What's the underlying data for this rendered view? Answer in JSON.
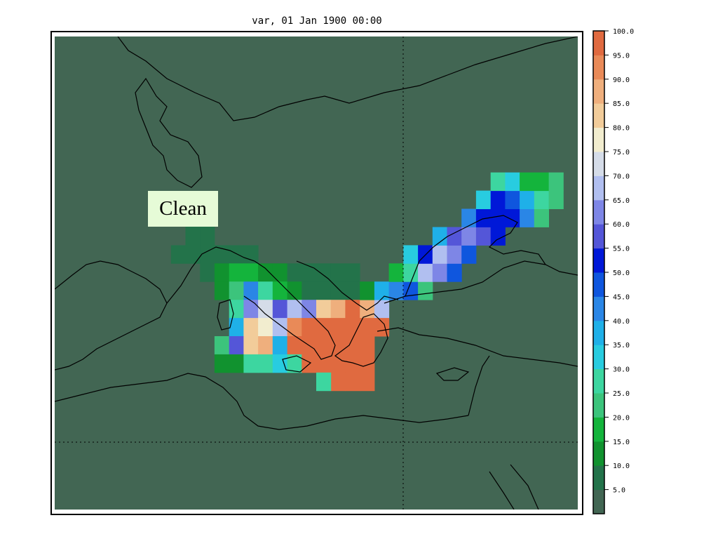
{
  "title": "var, 01 Jan 1900 00:00",
  "annotation": "Clean",
  "colors": {
    "background": "#426653",
    "coast": "#000000",
    "label_box": "#e6fbd7"
  },
  "colorbar": {
    "colors": [
      "#426653",
      "#23734a",
      "#11922f",
      "#14b43c",
      "#3cc47c",
      "#3dd6a0",
      "#28cce0",
      "#1fb0e8",
      "#2a86e6",
      "#0f56de",
      "#0018d8",
      "#5456d8",
      "#7e86e6",
      "#b1bff0",
      "#d5dce8",
      "#f2edcf",
      "#f2cc9a",
      "#efaf7d",
      "#e98a58",
      "#e06a40"
    ],
    "ticks": [
      "5.0",
      "10.0",
      "15.0",
      "20.0",
      "25.0",
      "30.0",
      "35.0",
      "40.0",
      "45.0",
      "50.0",
      "55.0",
      "60.0",
      "65.0",
      "70.0",
      "75.0",
      "80.0",
      "85.0",
      "90.0",
      "95.0",
      "100.0"
    ]
  },
  "grid": {
    "lon": 20,
    "lat": 40,
    "cells": [
      [
        9,
        6,
        1
      ],
      [
        10,
        6,
        1
      ],
      [
        9,
        7,
        1
      ],
      [
        10,
        7,
        1
      ],
      [
        8,
        8,
        1
      ],
      [
        9,
        8,
        1
      ],
      [
        10,
        8,
        1
      ],
      [
        11,
        8,
        1
      ],
      [
        12,
        8,
        1
      ],
      [
        13,
        8,
        1
      ],
      [
        10,
        9,
        1
      ],
      [
        11,
        9,
        2
      ],
      [
        12,
        9,
        3
      ],
      [
        13,
        9,
        3
      ],
      [
        14,
        9,
        2
      ],
      [
        15,
        9,
        2
      ],
      [
        16,
        9,
        1
      ],
      [
        17,
        9,
        1
      ],
      [
        18,
        9,
        1
      ],
      [
        19,
        9,
        1
      ],
      [
        20,
        9,
        1
      ],
      [
        11,
        10,
        2
      ],
      [
        12,
        10,
        4
      ],
      [
        13,
        10,
        8
      ],
      [
        14,
        10,
        5
      ],
      [
        15,
        10,
        3
      ],
      [
        16,
        10,
        2
      ],
      [
        17,
        10,
        1
      ],
      [
        18,
        10,
        1
      ],
      [
        19,
        10,
        1
      ],
      [
        20,
        10,
        1
      ],
      [
        12,
        11,
        5
      ],
      [
        13,
        11,
        12
      ],
      [
        14,
        11,
        14
      ],
      [
        15,
        11,
        11
      ],
      [
        16,
        11,
        13
      ],
      [
        17,
        11,
        12
      ],
      [
        18,
        11,
        16
      ],
      [
        19,
        11,
        17
      ],
      [
        20,
        11,
        19
      ],
      [
        21,
        11,
        17
      ],
      [
        22,
        11,
        13
      ],
      [
        12,
        12,
        7
      ],
      [
        13,
        12,
        16
      ],
      [
        14,
        12,
        15
      ],
      [
        15,
        12,
        13
      ],
      [
        16,
        12,
        18
      ],
      [
        17,
        12,
        19
      ],
      [
        18,
        12,
        19
      ],
      [
        19,
        12,
        19
      ],
      [
        20,
        12,
        19
      ],
      [
        21,
        12,
        19
      ],
      [
        22,
        12,
        19
      ],
      [
        11,
        13,
        4
      ],
      [
        12,
        13,
        11
      ],
      [
        13,
        13,
        16
      ],
      [
        14,
        13,
        17
      ],
      [
        15,
        13,
        7
      ],
      [
        16,
        13,
        19
      ],
      [
        17,
        13,
        19
      ],
      [
        18,
        13,
        19
      ],
      [
        19,
        13,
        19
      ],
      [
        20,
        13,
        19
      ],
      [
        21,
        13,
        19
      ],
      [
        11,
        14,
        2
      ],
      [
        12,
        14,
        2
      ],
      [
        13,
        14,
        5
      ],
      [
        14,
        14,
        5
      ],
      [
        15,
        14,
        6
      ],
      [
        16,
        14,
        5
      ],
      [
        17,
        14,
        19
      ],
      [
        18,
        14,
        19
      ],
      [
        19,
        14,
        19
      ],
      [
        20,
        14,
        19
      ],
      [
        21,
        14,
        19
      ],
      [
        19,
        15,
        19
      ],
      [
        20,
        15,
        19
      ],
      [
        21,
        15,
        19
      ],
      [
        18,
        15,
        5
      ],
      [
        21,
        10,
        2
      ],
      [
        22,
        10,
        7
      ],
      [
        23,
        10,
        8
      ],
      [
        24,
        10,
        9
      ],
      [
        25,
        10,
        4
      ],
      [
        23,
        9,
        3
      ],
      [
        24,
        9,
        5
      ],
      [
        25,
        9,
        13
      ],
      [
        26,
        9,
        12
      ],
      [
        27,
        9,
        9
      ],
      [
        24,
        8,
        6
      ],
      [
        25,
        8,
        10
      ],
      [
        26,
        8,
        13
      ],
      [
        27,
        8,
        12
      ],
      [
        28,
        8,
        9
      ],
      [
        26,
        7,
        7
      ],
      [
        27,
        7,
        11
      ],
      [
        28,
        7,
        12
      ],
      [
        29,
        7,
        11
      ],
      [
        30,
        7,
        10
      ],
      [
        28,
        6,
        8
      ],
      [
        29,
        6,
        10
      ],
      [
        30,
        6,
        10
      ],
      [
        31,
        6,
        10
      ],
      [
        32,
        6,
        8
      ],
      [
        33,
        6,
        4
      ],
      [
        29,
        5,
        6
      ],
      [
        30,
        5,
        10
      ],
      [
        31,
        5,
        9
      ],
      [
        32,
        5,
        7
      ],
      [
        33,
        5,
        5
      ],
      [
        34,
        5,
        4
      ],
      [
        30,
        4,
        5
      ],
      [
        31,
        4,
        6
      ],
      [
        32,
        4,
        3
      ],
      [
        33,
        4,
        3
      ],
      [
        34,
        4,
        4
      ]
    ]
  }
}
